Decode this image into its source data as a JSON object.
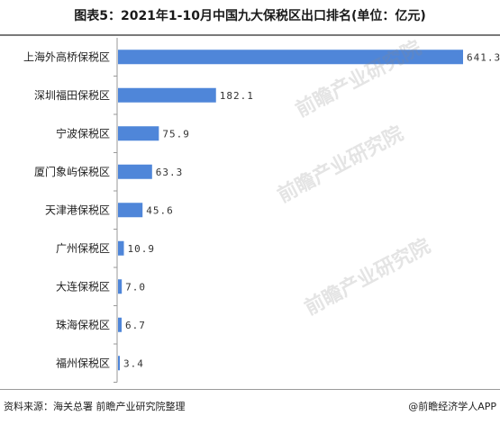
{
  "header": {
    "title": "图表5：2021年1-10月中国九大保税区出口排名(单位：亿元)"
  },
  "footer": {
    "source": "资料来源：海关总署 前瞻产业研究院整理",
    "brand": "@前瞻经济学人APP"
  },
  "watermark": {
    "text": "前瞻产业研究院"
  },
  "colors": {
    "bar": "#4f86d9",
    "axis": "#9a9a9a"
  },
  "chart_data": {
    "type": "bar",
    "orientation": "horizontal",
    "categories": [
      "上海外高桥保税区",
      "深圳福田保税区",
      "宁波保税区",
      "厦门象屿保税区",
      "天津港保税区",
      "广州保税区",
      "大连保税区",
      "珠海保税区",
      "福州保税区"
    ],
    "values": [
      641.3,
      182.1,
      75.9,
      63.3,
      45.6,
      10.9,
      7.0,
      6.7,
      3.4
    ],
    "value_labels": [
      "641.3",
      "182.1",
      "75.9",
      "63.3",
      "45.6",
      "10.9",
      "7.0",
      "6.7",
      "3.4"
    ],
    "xlim": [
      0,
      641.3
    ],
    "grid": false,
    "legend": "none"
  }
}
